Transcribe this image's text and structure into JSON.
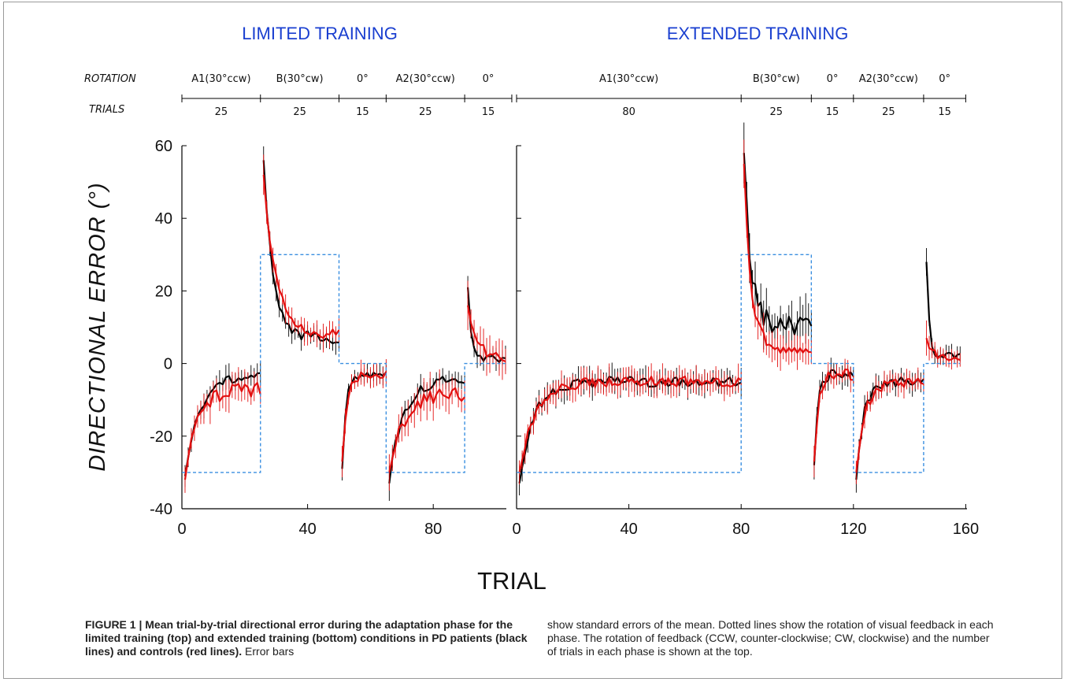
{
  "chart_data": [
    {
      "type": "line",
      "title": "LIMITED TRAINING",
      "xlabel": "TRIAL",
      "ylabel": "DIRECTIONAL ERROR (°)",
      "xlim": [
        0,
        103
      ],
      "ylim": [
        -40,
        60
      ],
      "xticks": [
        0,
        40,
        80
      ],
      "yticks": [
        -40,
        -20,
        0,
        20,
        40,
        60
      ],
      "grid": false,
      "phases": {
        "row_labels": {
          "rotation": "ROTATION",
          "trials": "TRIALS"
        },
        "rotation_labels": [
          "A1(30°ccw)",
          "B(30°cw)",
          "0°",
          "A2(30°ccw)",
          "0°"
        ],
        "trial_counts": [
          "25",
          "25",
          "15",
          "25",
          "15"
        ],
        "boundaries": [
          0,
          25,
          50,
          65,
          90,
          105
        ]
      },
      "series": [
        {
          "key": "pd",
          "color": "#000000",
          "segments": [
            {
              "start": 1,
              "end": 25,
              "first": -31,
              "asym": -3,
              "tau": 5,
              "jitter": 1.5,
              "err": 2.5
            },
            {
              "start": 26,
              "end": 50,
              "first": 56,
              "asym": 7,
              "tau": 3,
              "jitter": 1.5,
              "err": 2.5
            },
            {
              "start": 51,
              "end": 65,
              "first": -29,
              "asym": -3,
              "tau": 1.2,
              "jitter": 1.0,
              "err": 2.0
            },
            {
              "start": 66,
              "end": 90,
              "first": -33,
              "asym": -4,
              "tau": 4.5,
              "jitter": 1.5,
              "err": 2.5
            },
            {
              "start": 91,
              "end": 103,
              "first": 21,
              "asym": 1,
              "tau": 1.2,
              "jitter": 1.2,
              "err": 2.5
            }
          ]
        },
        {
          "key": "controls",
          "color": "#e31010",
          "segments": [
            {
              "start": 1,
              "end": 25,
              "first": -32,
              "asym": -7,
              "tau": 4,
              "jitter": 2.0,
              "err": 3.5
            },
            {
              "start": 26,
              "end": 50,
              "first": 52,
              "asym": 8,
              "tau": 4,
              "jitter": 1.5,
              "err": 3.0
            },
            {
              "start": 51,
              "end": 65,
              "first": -27,
              "asym": -3,
              "tau": 1.5,
              "jitter": 1.2,
              "err": 2.5
            },
            {
              "start": 66,
              "end": 90,
              "first": -30,
              "asym": -8,
              "tau": 5,
              "jitter": 2.2,
              "err": 4.0
            },
            {
              "start": 91,
              "end": 103,
              "first": 16,
              "asym": 1,
              "tau": 3,
              "jitter": 1.5,
              "err": 4.0
            }
          ]
        },
        {
          "key": "rotation",
          "color": "#3a8fe0",
          "style": "dotted",
          "x": [
            0,
            25,
            25,
            50,
            50,
            65,
            65,
            90,
            90,
            103
          ],
          "y": [
            -30,
            -30,
            30,
            30,
            0,
            0,
            -30,
            -30,
            0,
            0
          ]
        }
      ]
    },
    {
      "type": "line",
      "title": "EXTENDED TRAINING",
      "xlabel": "TRIAL",
      "xlim": [
        0,
        160
      ],
      "ylim": [
        -40,
        60
      ],
      "xticks": [
        0,
        40,
        80,
        120,
        160
      ],
      "grid": false,
      "phases": {
        "rotation_labels": [
          "A1(30°ccw)",
          "B(30°cw)",
          "0°",
          "A2(30°ccw)",
          "0°"
        ],
        "trial_counts": [
          "80",
          "25",
          "15",
          "25",
          "15"
        ],
        "boundaries": [
          0,
          80,
          105,
          120,
          145,
          160
        ]
      },
      "series": [
        {
          "key": "pd",
          "color": "#000000",
          "segments": [
            {
              "start": 1,
              "end": 80,
              "first": -33,
              "asym": -5,
              "tau": 5,
              "jitter": 1.5,
              "err": 3.0
            },
            {
              "start": 81,
              "end": 105,
              "first": 58,
              "asym": 10,
              "tau": 2.5,
              "jitter": 3.0,
              "err": 5.0
            },
            {
              "start": 106,
              "end": 120,
              "first": -28,
              "asym": -3,
              "tau": 1.2,
              "jitter": 1.5,
              "err": 2.5
            },
            {
              "start": 121,
              "end": 145,
              "first": -32,
              "asym": -5,
              "tau": 2.5,
              "jitter": 1.5,
              "err": 2.5
            },
            {
              "start": 146,
              "end": 158,
              "first": 28,
              "asym": 2,
              "tau": 1.0,
              "jitter": 1.0,
              "err": 2.0
            }
          ]
        },
        {
          "key": "controls",
          "color": "#e31010",
          "segments": [
            {
              "start": 1,
              "end": 80,
              "first": -30,
              "asym": -5,
              "tau": 6,
              "jitter": 1.5,
              "err": 3.0
            },
            {
              "start": 81,
              "end": 105,
              "first": 55,
              "asym": 4,
              "tau": 2.5,
              "jitter": 1.5,
              "err": 4.0
            },
            {
              "start": 106,
              "end": 120,
              "first": -27,
              "asym": -3,
              "tau": 1.5,
              "jitter": 1.5,
              "err": 2.5
            },
            {
              "start": 121,
              "end": 145,
              "first": -30,
              "asym": -5,
              "tau": 3,
              "jitter": 1.5,
              "err": 2.5
            },
            {
              "start": 146,
              "end": 158,
              "first": 7,
              "asym": 1,
              "tau": 2.5,
              "jitter": 1.0,
              "err": 2.5
            }
          ]
        },
        {
          "key": "rotation",
          "color": "#3a8fe0",
          "style": "dotted",
          "x": [
            0,
            80,
            80,
            105,
            105,
            120,
            120,
            145,
            145,
            158
          ],
          "y": [
            -30,
            -30,
            30,
            30,
            0,
            0,
            -30,
            -30,
            0,
            0
          ]
        }
      ]
    }
  ],
  "caption": {
    "bold": "FIGURE 1 | Mean trial-by-trial directional error during the adaptation phase for the limited training (top) and extended training (bottom) conditions in PD patients (black lines) and controls (red lines).",
    "left_rest": " Error bars",
    "right": "show standard errors of the mean. Dotted lines show the rotation of visual feedback in each phase. The rotation of feedback (CCW, counter-clockwise; CW, clockwise) and the number of trials in each phase is shown at the top."
  }
}
